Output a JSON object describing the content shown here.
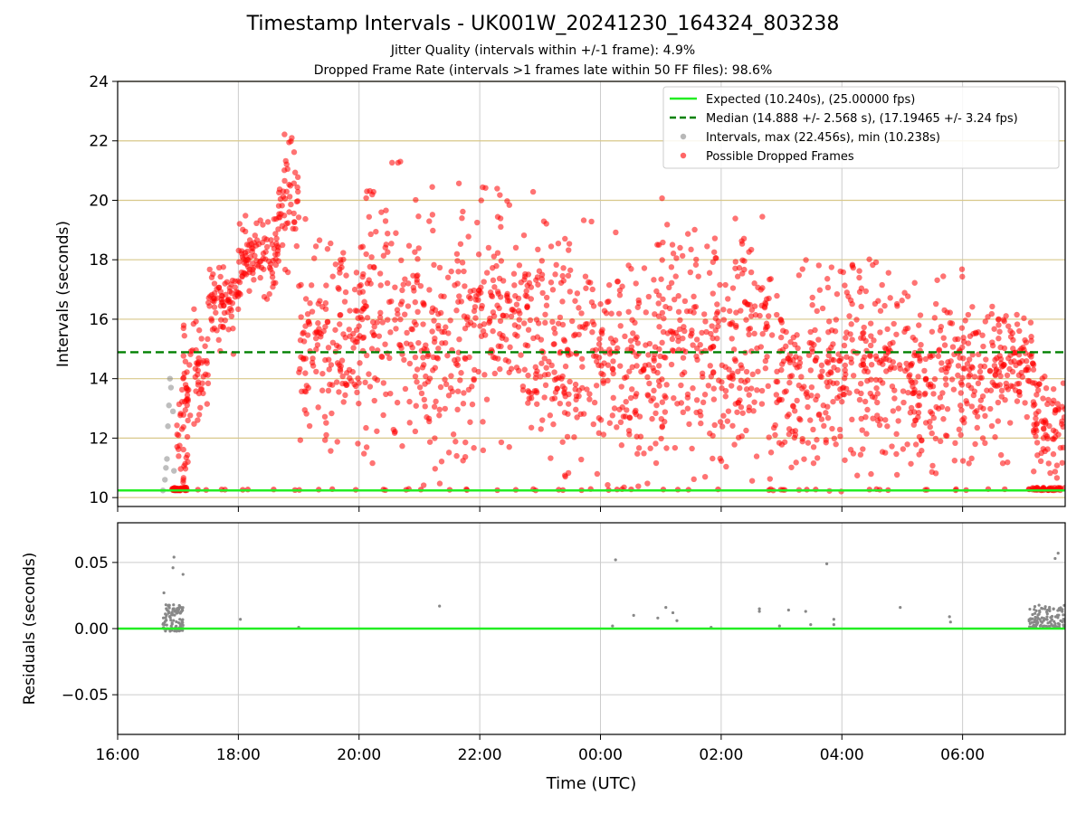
{
  "title": "Timestamp Intervals - UK001W_20241230_164324_803238",
  "subtitle_1": "Jitter Quality (intervals within +/-1 frame): 4.9%",
  "subtitle_2": "Dropped Frame Rate (intervals >1 frames late within 50 FF files): 98.6%",
  "colors": {
    "expected": "#22ee22",
    "median": "#008000",
    "dropped": "#ff0000",
    "intervals": "#888888",
    "hgrid": "#d8c88a",
    "vgrid": "#cccccc"
  },
  "chart_data": [
    {
      "type": "scatter",
      "ylabel": "Intervals (seconds)",
      "xlabel": "",
      "ylim": [
        9.7,
        24
      ],
      "xlim": [
        "2024-12-30T16:00",
        "2024-12-31T07:42"
      ],
      "yticks": [
        "10",
        "12",
        "14",
        "16",
        "18",
        "20",
        "22",
        "24"
      ],
      "xticks": [
        "16:00",
        "18:00",
        "20:00",
        "22:00",
        "00:00",
        "02:00",
        "04:00",
        "06:00"
      ],
      "grid": "horizontal gold lines, vertical gray lines",
      "legend_position": "top-right",
      "legend": [
        "Expected (10.240s), (25.00000 fps)",
        "Median (14.888 +/- 2.568 s), (17.19465 +/- 3.24 fps)",
        "Intervals, max (22.456s), min (10.238s)",
        "Possible Dropped Frames"
      ],
      "expected_line": 10.24,
      "median_line": 14.888,
      "intervals_max": 22.456,
      "intervals_min": 10.238,
      "series": [
        {
          "name": "Intervals, max (22.456s), min (10.238s)",
          "points": [
            [
              "16:45",
              10.24
            ],
            [
              "16:47",
              10.6
            ],
            [
              "16:48",
              11.0
            ],
            [
              "16:49",
              11.3
            ],
            [
              "16:50",
              12.4
            ],
            [
              "16:51",
              13.1
            ],
            [
              "16:52",
              14.0
            ],
            [
              "16:53",
              13.7
            ],
            [
              "16:55",
              12.9
            ],
            [
              "16:56",
              10.9
            ],
            [
              "16:57",
              10.24
            ],
            [
              "16:58",
              10.24
            ]
          ]
        },
        {
          "name": "Possible Dropped Frames",
          "segments": [
            {
              "from": "16:58",
              "to": "17:10",
              "min": 10.2,
              "max": 13.8
            },
            {
              "from": "17:05",
              "to": "17:30",
              "min": 12.2,
              "max": 16.4
            },
            {
              "from": "17:30",
              "to": "18:00",
              "min": 14.8,
              "max": 18.0
            },
            {
              "from": "18:00",
              "to": "18:40",
              "min": 16.5,
              "max": 19.6
            },
            {
              "from": "18:40",
              "to": "19:00",
              "min": 17.5,
              "max": 22.4
            },
            {
              "from": "19:00",
              "to": "20:00",
              "min": 11.5,
              "max": 19.5
            },
            {
              "from": "20:00",
              "to": "21:00",
              "min": 11.0,
              "max": 21.4
            },
            {
              "from": "21:00",
              "to": "22:00",
              "min": 10.3,
              "max": 20.9
            },
            {
              "from": "22:00",
              "to": "23:00",
              "min": 11.0,
              "max": 20.5
            },
            {
              "from": "23:00",
              "to": "00:00",
              "min": 10.3,
              "max": 19.5
            },
            {
              "from": "00:00",
              "to": "01:00",
              "min": 10.2,
              "max": 19.0
            },
            {
              "from": "01:00",
              "to": "02:00",
              "min": 10.2,
              "max": 20.3
            },
            {
              "from": "02:00",
              "to": "03:00",
              "min": 10.2,
              "max": 20.0
            },
            {
              "from": "03:00",
              "to": "04:00",
              "min": 10.2,
              "max": 18.0
            },
            {
              "from": "04:00",
              "to": "05:00",
              "min": 10.5,
              "max": 18.8
            },
            {
              "from": "05:00",
              "to": "06:00",
              "min": 10.2,
              "max": 17.8
            },
            {
              "from": "06:00",
              "to": "06:45",
              "min": 11.0,
              "max": 17.2
            },
            {
              "from": "06:45",
              "to": "07:10",
              "min": 12.5,
              "max": 16.5
            },
            {
              "from": "07:10",
              "to": "07:42",
              "min": 10.2,
              "max": 14.5
            }
          ]
        }
      ]
    },
    {
      "type": "scatter",
      "ylabel": "Residuals (seconds)",
      "xlabel": "Time (UTC)",
      "ylim": [
        -0.08,
        0.08
      ],
      "yticks": [
        "0.05",
        "0.00",
        "−0.05"
      ],
      "xticks": [
        "16:00",
        "18:00",
        "20:00",
        "22:00",
        "00:00",
        "02:00",
        "04:00",
        "06:00"
      ],
      "zero_line": 0.0,
      "series": [
        {
          "name": "",
          "points": [
            [
              "16:46",
              0.027
            ],
            [
              "16:48",
              0.018
            ],
            [
              "16:51",
              0.012
            ],
            [
              "16:55",
              0.046
            ],
            [
              "16:56",
              0.054
            ],
            [
              "17:05",
              0.041
            ],
            [
              "18:02",
              0.007
            ],
            [
              "19:00",
              0.001
            ],
            [
              "21:20",
              0.017
            ],
            [
              "00:15",
              0.052
            ],
            [
              "00:12",
              0.002
            ],
            [
              "00:33",
              0.01
            ],
            [
              "00:57",
              0.008
            ],
            [
              "01:05",
              0.016
            ],
            [
              "01:12",
              0.012
            ],
            [
              "01:16",
              0.006
            ],
            [
              "01:50",
              0.001
            ],
            [
              "02:38",
              0.013
            ],
            [
              "02:38",
              0.015
            ],
            [
              "02:58",
              0.002
            ],
            [
              "03:07",
              0.014
            ],
            [
              "03:24",
              0.013
            ],
            [
              "03:29",
              0.003
            ],
            [
              "03:45",
              0.049
            ],
            [
              "03:52",
              0.007
            ],
            [
              "03:52",
              0.003
            ],
            [
              "04:58",
              0.016
            ],
            [
              "05:47",
              0.009
            ],
            [
              "05:48",
              0.005
            ],
            [
              "07:32",
              0.053
            ],
            [
              "07:35",
              0.057
            ]
          ],
          "clusters": [
            {
              "from": "16:45",
              "to": "17:05",
              "min": -0.002,
              "max": 0.018
            },
            {
              "from": "07:06",
              "to": "07:42",
              "min": 0.001,
              "max": 0.018
            }
          ]
        }
      ]
    }
  ]
}
